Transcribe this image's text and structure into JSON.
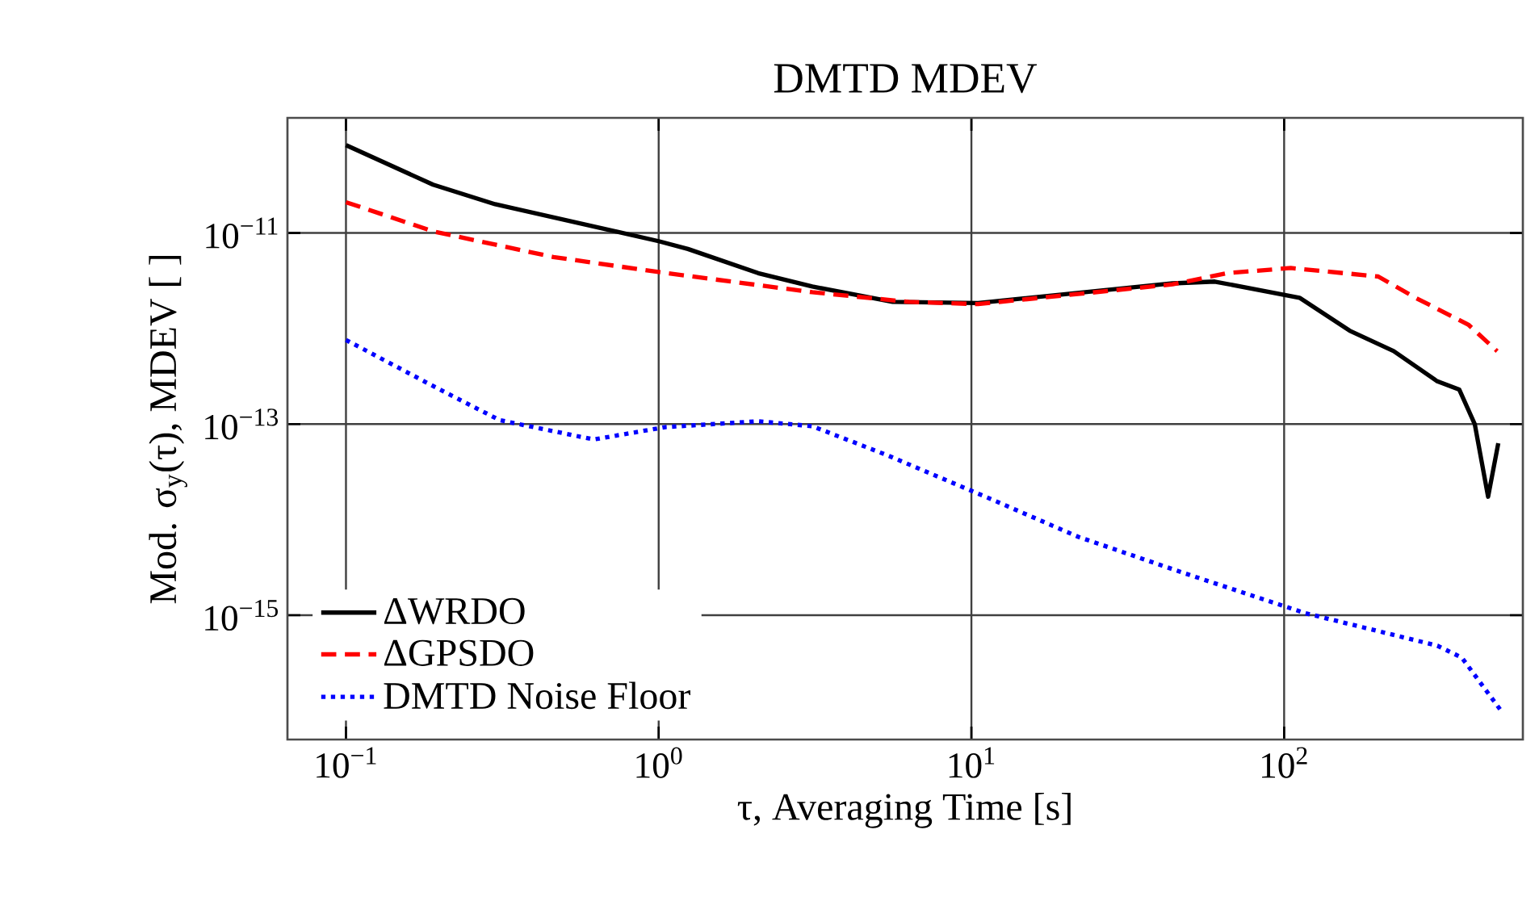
{
  "chart_data": {
    "type": "line",
    "title": "DMTD MDEV",
    "xlabel": "τ, Averaging Time [s]",
    "ylabel": "Mod. σ$_{y}$(τ), MDEV [ ]",
    "log": "xy",
    "grid": true,
    "legend": "bottom left",
    "xlim": [
      0.065,
      580
    ],
    "ylim": [
      5e-17,
      1.6e-10
    ],
    "xticks": [
      {
        "value": 0.1,
        "label": "10$^{−1}$"
      },
      {
        "value": 1,
        "label": "10$^{0}$"
      },
      {
        "value": 10,
        "label": "10$^{1}$"
      },
      {
        "value": 100,
        "label": "10$^{2}$"
      }
    ],
    "yticks": [
      {
        "value": 1e-15,
        "label": "10$^{−15}$"
      },
      {
        "value": 1e-13,
        "label": "10$^{−13}$"
      },
      {
        "value": 1e-11,
        "label": "10$^{−11}$"
      }
    ],
    "series": [
      {
        "name": "ΔWRDO",
        "color": "#000000",
        "line_style": "solid",
        "x": [
          0.1,
          0.19,
          0.3,
          1.0,
          1.24,
          2.08,
          3.1,
          5.6,
          10.5,
          44,
          60,
          112,
          162,
          224,
          309,
          363,
          407,
          449,
          484
        ],
        "values": [
          8.3e-11,
          3.2e-11,
          2e-11,
          8.2e-12,
          6.8e-12,
          3.8e-12,
          2.75e-12,
          1.9e-12,
          1.85e-12,
          2.97e-12,
          3.1e-12,
          2.1e-12,
          9.5e-13,
          5.8e-13,
          2.8e-13,
          2.3e-13,
          1e-13,
          1.74e-14,
          6.3e-14
        ]
      },
      {
        "name": "ΔGPSDO",
        "color": "#ff0000",
        "line_style": "dashed",
        "x": [
          0.1,
          0.19,
          0.46,
          1.0,
          3.1,
          6.3,
          10.5,
          44,
          66,
          105,
          200,
          263,
          388,
          480
        ],
        "values": [
          2.1e-11,
          1.04e-11,
          5.6e-12,
          3.9e-12,
          2.4e-12,
          1.9e-12,
          1.8e-12,
          2.9e-12,
          3.8e-12,
          4.3e-12,
          3.5e-12,
          2.1e-12,
          1.1e-12,
          5.8e-13
        ]
      },
      {
        "name": "DMTD Noise Floor",
        "color": "#0000ff",
        "line_style": "dotted",
        "x": [
          0.1,
          0.19,
          0.31,
          0.62,
          1.05,
          2.08,
          3.1,
          5.4,
          10.9,
          22,
          48,
          117,
          309,
          370,
          500
        ],
        "values": [
          7.6e-13,
          2.5e-13,
          1.1e-13,
          6.9e-14,
          9.3e-14,
          1.07e-13,
          9.5e-14,
          4.7e-14,
          1.78e-14,
          6.6e-15,
          2.75e-15,
          1.05e-15,
          4.8e-16,
          3.6e-16,
          9.5e-17
        ]
      }
    ]
  }
}
